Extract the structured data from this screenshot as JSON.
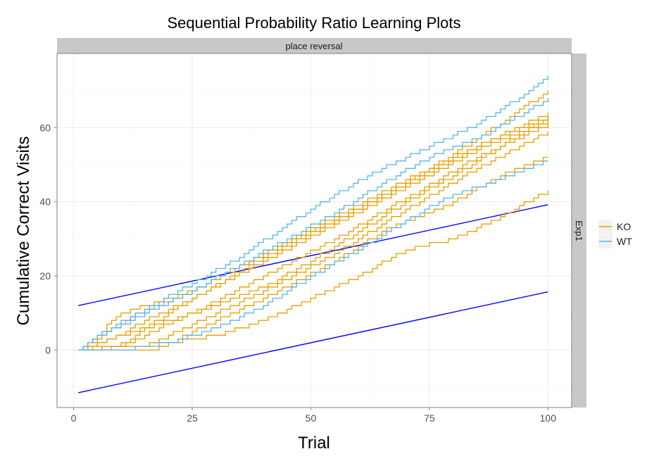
{
  "chart_data": {
    "type": "line",
    "title": "Sequential Probability Ratio Learning Plots",
    "facet_top": "place reversal",
    "facet_right": "Exp1",
    "xlabel": "Trial",
    "ylabel": "Cumulative Correct Visits",
    "xlim": [
      -3.5,
      105
    ],
    "ylim": [
      -15.5,
      80
    ],
    "x_ticks": [
      0,
      25,
      50,
      75,
      100
    ],
    "y_ticks": [
      0,
      20,
      40,
      60
    ],
    "grid": true,
    "legend_position": "right",
    "legend": [
      {
        "name": "KO",
        "color": "#E69F00"
      },
      {
        "name": "WT",
        "color": "#56B4E9"
      }
    ],
    "boundary_lines": [
      {
        "color": "#0000FF",
        "x": [
          1,
          100
        ],
        "y": [
          12,
          39.2
        ]
      },
      {
        "color": "#0000FF",
        "x": [
          1,
          100
        ],
        "y": [
          -11.5,
          15.7
        ]
      }
    ],
    "series": [
      {
        "group": "KO",
        "color": "#E69F00",
        "x": [
          1,
          3,
          10,
          25,
          40,
          55,
          70,
          85,
          100
        ],
        "y": [
          0,
          2,
          10,
          16,
          26,
          36,
          46,
          55,
          64
        ]
      },
      {
        "group": "KO",
        "color": "#E69F00",
        "x": [
          1,
          5,
          12,
          25,
          40,
          55,
          70,
          85,
          100
        ],
        "y": [
          0,
          3,
          9,
          16,
          26,
          35,
          45,
          55,
          63
        ]
      },
      {
        "group": "KO",
        "color": "#E69F00",
        "x": [
          1,
          8,
          15,
          25,
          40,
          55,
          70,
          85,
          100
        ],
        "y": [
          0,
          3,
          8,
          14,
          24,
          34,
          44,
          54,
          62
        ]
      },
      {
        "group": "KO",
        "color": "#E69F00",
        "x": [
          1,
          10,
          15,
          25,
          40,
          55,
          70,
          85,
          100
        ],
        "y": [
          0,
          1,
          6,
          14,
          25,
          35,
          45,
          57,
          70
        ]
      },
      {
        "group": "KO",
        "color": "#E69F00",
        "x": [
          1,
          12,
          18,
          28,
          40,
          55,
          70,
          85,
          100
        ],
        "y": [
          0,
          2,
          6,
          12,
          20,
          30,
          41,
          52,
          61
        ]
      },
      {
        "group": "KO",
        "color": "#E69F00",
        "x": [
          1,
          15,
          20,
          30,
          40,
          55,
          70,
          85,
          100
        ],
        "y": [
          0,
          1,
          4,
          10,
          16,
          26,
          38,
          49,
          59
        ]
      },
      {
        "group": "KO",
        "color": "#E69F00",
        "x": [
          1,
          17,
          22,
          30,
          40,
          55,
          65,
          80,
          90,
          100
        ],
        "y": [
          0,
          0,
          3,
          8,
          14,
          24,
          32,
          40,
          47,
          52
        ]
      },
      {
        "group": "KO",
        "color": "#E69F00",
        "x": [
          1,
          20,
          25,
          30,
          40,
          50,
          60,
          70,
          80,
          90,
          100
        ],
        "y": [
          0,
          2,
          3,
          4,
          8,
          14,
          20,
          27,
          30,
          36,
          43
        ]
      },
      {
        "group": "KO",
        "color": "#E69F00",
        "x": [
          1,
          10,
          20,
          30,
          40,
          50,
          60,
          70,
          80,
          90,
          100
        ],
        "y": [
          0,
          4,
          8,
          12,
          17,
          24,
          32,
          40,
          47,
          55,
          63
        ]
      },
      {
        "group": "WT",
        "color": "#56B4E9",
        "x": [
          1,
          5,
          15,
          25,
          35,
          45,
          55,
          65,
          75,
          85,
          95,
          100
        ],
        "y": [
          0,
          4,
          11,
          18,
          25,
          34,
          42,
          49,
          55,
          61,
          69,
          74
        ]
      },
      {
        "group": "WT",
        "color": "#56B4E9",
        "x": [
          1,
          4,
          15,
          25,
          35,
          45,
          55,
          65,
          75,
          85,
          95,
          100
        ],
        "y": [
          0,
          3,
          10,
          16,
          23,
          30,
          37,
          45,
          52,
          57,
          64,
          68
        ]
      },
      {
        "group": "WT",
        "color": "#56B4E9",
        "x": [
          1,
          10,
          20,
          30,
          40,
          50,
          60,
          70,
          80,
          90,
          100
        ],
        "y": [
          0,
          0,
          2,
          6,
          12,
          20,
          27,
          35,
          42,
          46,
          51
        ]
      }
    ]
  }
}
